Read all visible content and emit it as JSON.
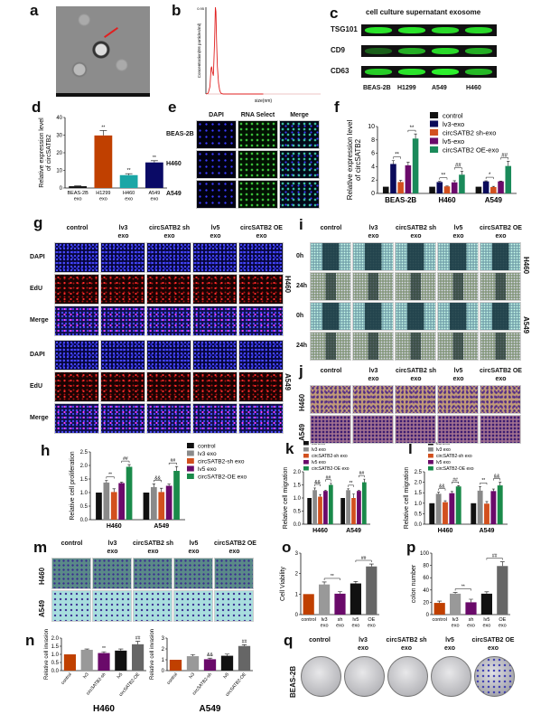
{
  "panel_labels": {
    "a": "a",
    "b": "b",
    "c": "c",
    "d": "d",
    "e": "e",
    "f": "f",
    "g": "g",
    "h": "h",
    "i": "i",
    "j": "j",
    "k": "k",
    "l": "l",
    "m": "m",
    "n": "n",
    "o": "o",
    "p": "p",
    "q": "q"
  },
  "panel_c": {
    "title": "cell culture supernatant exosome",
    "rows": [
      "TSG101",
      "CD9",
      "CD63"
    ],
    "columns": [
      "BEAS-2B",
      "H1299",
      "A549",
      "H460"
    ],
    "band_intensity": [
      [
        0.95,
        0.95,
        0.9,
        0.9
      ],
      [
        0.35,
        0.7,
        0.9,
        0.7
      ],
      [
        0.85,
        0.95,
        1.0,
        0.75
      ]
    ]
  },
  "panel_e": {
    "columns": [
      "DAPI",
      "RNA Select",
      "Merge"
    ],
    "rows": [
      "BEAS-2B",
      "H460",
      "A549"
    ]
  },
  "treatments": [
    {
      "l1": "control",
      "l2": ""
    },
    {
      "l1": "lv3",
      "l2": "exo"
    },
    {
      "l1": "circSATB2 sh",
      "l2": "exo"
    },
    {
      "l1": "lv5",
      "l2": "exo"
    },
    {
      "l1": "circSATB2 OE",
      "l2": "exo"
    }
  ],
  "panel_g": {
    "rows": [
      "DAPI",
      "EdU",
      "Merge",
      "DAPI",
      "EdU",
      "Merge"
    ],
    "groups": [
      "H460",
      "A549"
    ]
  },
  "panel_i": {
    "rows": [
      "0h",
      "24h",
      "0h",
      "24h"
    ],
    "groups": [
      "H460",
      "A549"
    ]
  },
  "panel_j": {
    "rows": [
      "H460",
      "A549"
    ]
  },
  "panel_m": {
    "rows": [
      "H460",
      "A549"
    ]
  },
  "panel_q": {
    "row": "BEAS-2B"
  },
  "chart_data": [
    {
      "panel": "b",
      "type": "line",
      "title": "",
      "xlabel": "size(nm)",
      "ylabel": "Concentration(E6 particles/ml)",
      "ylim": [
        0,
        0.95
      ],
      "xlim": [
        0,
        1000
      ],
      "yticks": [
        "0.95"
      ],
      "x": [
        0,
        40,
        70,
        90,
        100,
        110,
        130,
        150,
        165,
        175,
        185,
        200,
        220,
        240,
        260,
        300,
        400,
        600,
        1000
      ],
      "y": [
        0,
        0.01,
        0.08,
        0.28,
        0.3,
        0.25,
        0.2,
        0.55,
        0.95,
        0.9,
        0.6,
        0.3,
        0.12,
        0.04,
        0.01,
        0,
        0,
        0,
        0
      ]
    },
    {
      "panel": "d",
      "type": "bar",
      "ylabel": "Relative expression level of circSATB2",
      "ylim": [
        0,
        40
      ],
      "yticks": [
        0,
        10,
        20,
        30,
        40
      ],
      "categories": [
        "BEAS-2B exo",
        "H1299 exo",
        "H460 exo",
        "A549 exo"
      ],
      "values": [
        1,
        29.8,
        7.3,
        14.5
      ],
      "errors": [
        0.2,
        2.8,
        0.8,
        1.0
      ],
      "colors": [
        "#111111",
        "#c04000",
        "#1aa6a6",
        "#0a0a66"
      ],
      "annotations": [
        {
          "bar": 1,
          "text": "**"
        },
        {
          "bar": 2,
          "text": "**"
        },
        {
          "bar": 3,
          "text": "**"
        }
      ]
    },
    {
      "panel": "f",
      "type": "bar",
      "ylabel": "Relative expression level of circSATB2",
      "ylim": [
        0,
        10
      ],
      "yticks": [
        0,
        2,
        4,
        6,
        8,
        10
      ],
      "categories": [
        "BEAS-2B",
        "H460",
        "A549"
      ],
      "series": [
        {
          "name": "control",
          "values": [
            1,
            1,
            1
          ],
          "errors": [
            0,
            0,
            0
          ],
          "color": "#111111"
        },
        {
          "name": "lv3-exo",
          "values": [
            4.4,
            1.7,
            1.8
          ],
          "errors": [
            0.5,
            0.1,
            0.08
          ],
          "color": "#0a0a5a"
        },
        {
          "name": "circSATB2 sh-exo",
          "values": [
            1.7,
            1.05,
            0.95
          ],
          "errors": [
            0.25,
            0.05,
            0.1
          ],
          "color": "#d2501e"
        },
        {
          "name": "lv5-exo",
          "values": [
            4.2,
            1.65,
            1.8
          ],
          "errors": [
            0.45,
            0.25,
            0.05
          ],
          "color": "#6a0a6a"
        },
        {
          "name": "circSATB2 OE-exo",
          "values": [
            8.2,
            2.8,
            4.1
          ],
          "errors": [
            0.7,
            0.5,
            0.7
          ],
          "color": "#1a8a5a"
        }
      ],
      "annotations": [
        {
          "group": 0,
          "s": [
            1,
            2
          ],
          "text": "**"
        },
        {
          "group": 0,
          "s": [
            3,
            4
          ],
          "text": "**"
        },
        {
          "group": 1,
          "s": [
            1,
            2
          ],
          "text": "**"
        },
        {
          "group": 1,
          "s": [
            3,
            4
          ],
          "text": "##"
        },
        {
          "group": 2,
          "s": [
            1,
            2
          ],
          "text": "*"
        },
        {
          "group": 2,
          "s": [
            3,
            4
          ],
          "text": "##"
        }
      ]
    },
    {
      "panel": "h",
      "type": "bar",
      "ylabel": "Relative cell proliferation",
      "ylim": [
        0,
        2.5
      ],
      "yticks": [
        "0.0",
        "0.5",
        "1.0",
        "1.5",
        "2.0",
        "2.5"
      ],
      "categories": [
        "H460",
        "A549"
      ],
      "series": [
        {
          "name": "control",
          "values": [
            1,
            1
          ],
          "errors": [
            0,
            0
          ],
          "color": "#111111"
        },
        {
          "name": "lv3 exo",
          "values": [
            1.37,
            1.2
          ],
          "errors": [
            0.08,
            0.12
          ],
          "color": "#8a8a8a"
        },
        {
          "name": "circSATB2-sh exo",
          "values": [
            1.02,
            1.02
          ],
          "errors": [
            0.12,
            0.14
          ],
          "color": "#d2501e"
        },
        {
          "name": "lv5 exo",
          "values": [
            1.35,
            1.25
          ],
          "errors": [
            0.03,
            0.06
          ],
          "color": "#6a0a6a"
        },
        {
          "name": "circSATB2-OE exo",
          "values": [
            1.95,
            1.8
          ],
          "errors": [
            0.08,
            0.16
          ],
          "color": "#1a8a4a"
        }
      ],
      "annotations": [
        {
          "group": 0,
          "s": [
            1,
            2
          ],
          "text": "**"
        },
        {
          "group": 0,
          "s": [
            3,
            4
          ],
          "text": "##"
        },
        {
          "group": 1,
          "s": [
            1,
            2
          ],
          "text": "&&"
        },
        {
          "group": 1,
          "s": [
            3,
            4
          ],
          "text": "##"
        }
      ]
    },
    {
      "panel": "k",
      "type": "bar",
      "ylabel": "Relative cell migration",
      "ylim": [
        0,
        2.0
      ],
      "yticks": [
        "0.0",
        "0.5",
        "1.0",
        "1.5",
        "2.0"
      ],
      "categories": [
        "H460",
        "A549"
      ],
      "series": [
        {
          "name": "control",
          "values": [
            1,
            1
          ],
          "errors": [
            0,
            0
          ],
          "color": "#111111"
        },
        {
          "name": "lv3 exo",
          "values": [
            1.3,
            1.3
          ],
          "errors": [
            0.08,
            0.05
          ],
          "color": "#8a8a8a"
        },
        {
          "name": "circSATB2-sh exo",
          "values": [
            1.05,
            1.0
          ],
          "errors": [
            0.08,
            0.15
          ],
          "color": "#d2501e"
        },
        {
          "name": "lv5 exo",
          "values": [
            1.27,
            1.27
          ],
          "errors": [
            0.02,
            0.02
          ],
          "color": "#6a0a6a"
        },
        {
          "name": "circSATB2-OE exo",
          "values": [
            1.5,
            1.6
          ],
          "errors": [
            0.06,
            0.12
          ],
          "color": "#1a8a4a"
        }
      ],
      "annotations": [
        {
          "group": 0,
          "s": [
            1,
            2
          ],
          "text": "&&"
        },
        {
          "group": 0,
          "s": [
            3,
            4
          ],
          "text": "##"
        },
        {
          "group": 1,
          "s": [
            1,
            2
          ],
          "text": "**"
        },
        {
          "group": 1,
          "s": [
            3,
            4
          ],
          "text": "##"
        }
      ]
    },
    {
      "panel": "l",
      "type": "bar",
      "ylabel": "Relative cell migration",
      "ylim": [
        0,
        2.5
      ],
      "yticks": [
        "0.0",
        "0.5",
        "1.0",
        "1.5",
        "2.0",
        "2.5"
      ],
      "categories": [
        "H460",
        "A549"
      ],
      "series": [
        {
          "name": "control",
          "values": [
            1,
            1
          ],
          "errors": [
            0,
            0
          ],
          "color": "#111111"
        },
        {
          "name": "lv3 exo",
          "values": [
            1.45,
            1.6
          ],
          "errors": [
            0.07,
            0.2
          ],
          "color": "#8a8a8a"
        },
        {
          "name": "circSATB2-sh exo",
          "values": [
            1.05,
            0.98
          ],
          "errors": [
            0.07,
            0.1
          ],
          "color": "#d2501e"
        },
        {
          "name": "lv5 exo",
          "values": [
            1.48,
            1.58
          ],
          "errors": [
            0.08,
            0.1
          ],
          "color": "#6a0a6a"
        },
        {
          "name": "circSATB2-OE exo",
          "values": [
            1.8,
            1.85
          ],
          "errors": [
            0.04,
            0.15
          ],
          "color": "#1a8a4a"
        }
      ],
      "annotations": [
        {
          "group": 0,
          "s": [
            1,
            2
          ],
          "text": "&&"
        },
        {
          "group": 0,
          "s": [
            3,
            4
          ],
          "text": "##"
        },
        {
          "group": 1,
          "s": [
            1,
            2
          ],
          "text": "**"
        },
        {
          "group": 1,
          "s": [
            3,
            4
          ],
          "text": "&&"
        }
      ]
    },
    {
      "panel": "o",
      "type": "bar",
      "ylabel": "Cell Viability",
      "ylim": [
        0,
        3
      ],
      "yticks": [
        0,
        1,
        2,
        3
      ],
      "categories": [
        "control",
        "lv3 exo",
        "sh exo",
        "lv5 exo",
        "OE exo"
      ],
      "values": [
        1,
        1.47,
        1.02,
        1.52,
        2.35
      ],
      "errors": [
        0,
        0.12,
        0.1,
        0.1,
        0.12
      ],
      "colors": [
        "#c04000",
        "#999999",
        "#6a0a6a",
        "#111111",
        "#666666"
      ],
      "annotations": [
        {
          "bars": [
            1,
            2
          ],
          "text": "**"
        },
        {
          "bars": [
            3,
            4
          ],
          "text": "##"
        }
      ]
    },
    {
      "panel": "p",
      "type": "bar",
      "ylabel": "colon number",
      "ylim": [
        0,
        100
      ],
      "yticks": [
        0,
        20,
        40,
        60,
        80,
        100
      ],
      "categories": [
        "control",
        "lv3 exo",
        "sh exo",
        "lv5 exo",
        "OE exo"
      ],
      "values": [
        19,
        34,
        20,
        34,
        79
      ],
      "errors": [
        3,
        2,
        5,
        3,
        7
      ],
      "colors": [
        "#c04000",
        "#999999",
        "#6a0a6a",
        "#111111",
        "#666666"
      ],
      "annotations": [
        {
          "bars": [
            1,
            2
          ],
          "text": "**"
        },
        {
          "bars": [
            3,
            4
          ],
          "text": "##"
        }
      ]
    },
    {
      "panel": "n-H460",
      "type": "bar",
      "title": "H460",
      "ylabel": "Relative cell invasion",
      "ylim": [
        0,
        2.0
      ],
      "yticks": [
        "0.0",
        "0.5",
        "1.0",
        "1.5",
        "2.0"
      ],
      "categories": [
        "control",
        "lv3",
        "circSATB2-sh",
        "lv5",
        "circSATB2-OE"
      ],
      "values": [
        1,
        1.28,
        1.08,
        1.23,
        1.62
      ],
      "errors": [
        0,
        0.05,
        0.08,
        0.1,
        0.18
      ],
      "colors": [
        "#c04000",
        "#999999",
        "#6a0a6a",
        "#111111",
        "#666666"
      ],
      "annotations": [
        {
          "bar": 2,
          "text": "**"
        },
        {
          "bar": 4,
          "text": "##"
        }
      ]
    },
    {
      "panel": "n-A549",
      "type": "bar",
      "title": "A549",
      "ylabel": "Relative cell invasion",
      "ylim": [
        0,
        3
      ],
      "yticks": [
        0,
        1,
        2,
        3
      ],
      "categories": [
        "control",
        "lv3",
        "circSATB2-sh",
        "lv5",
        "circSATB2-OE"
      ],
      "values": [
        1,
        1.33,
        1.05,
        1.37,
        2.27
      ],
      "errors": [
        0,
        0.15,
        0.1,
        0.15,
        0.12
      ],
      "colors": [
        "#c04000",
        "#999999",
        "#6a0a6a",
        "#111111",
        "#666666"
      ],
      "annotations": [
        {
          "bar": 2,
          "text": "&&"
        },
        {
          "bar": 4,
          "text": "##"
        }
      ]
    }
  ]
}
